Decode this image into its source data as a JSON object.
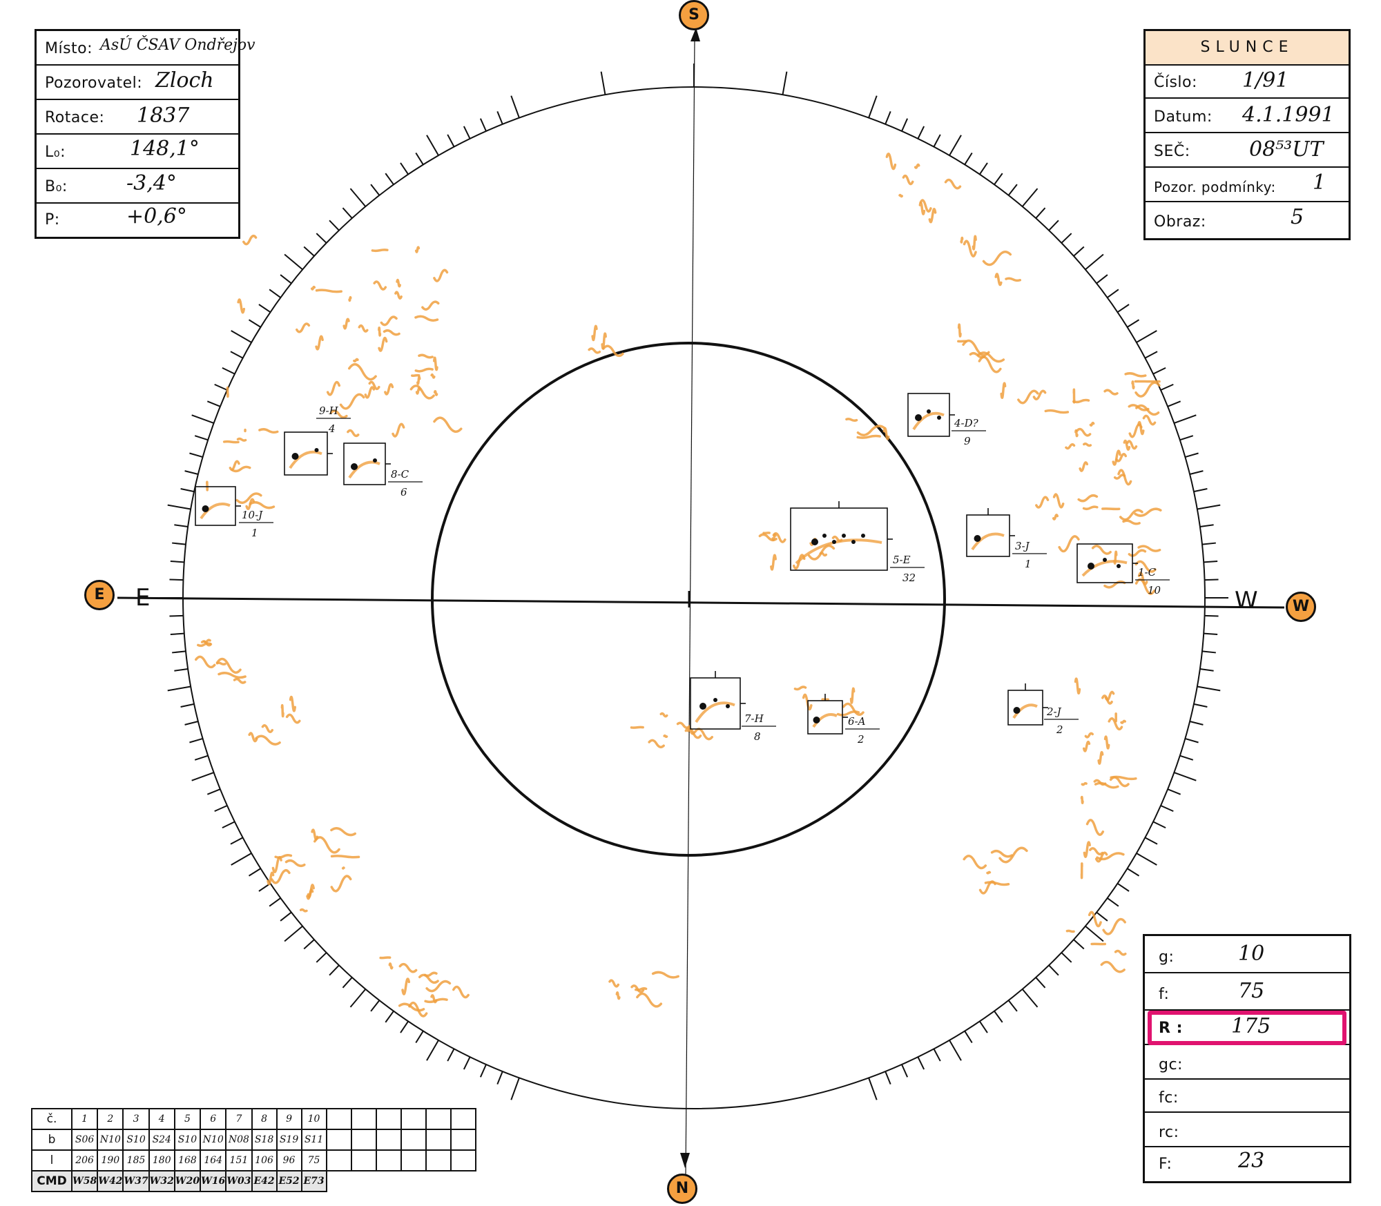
{
  "header_left": {
    "rows": [
      {
        "label": "Místo:",
        "value": "AsÚ ČSAV Ondřejov"
      },
      {
        "label": "Pozorovatel:",
        "value": "Zloch"
      },
      {
        "label": "Rotace:",
        "value": "1837"
      },
      {
        "label": "L₀:",
        "value": "148,1°"
      },
      {
        "label": "B₀:",
        "value": "-3,4°"
      },
      {
        "label": "P:",
        "value": "+0,6°"
      }
    ]
  },
  "header_right": {
    "title": "SLUNCE",
    "rows": [
      {
        "label": "Číslo:",
        "value": "1/91"
      },
      {
        "label": "Datum:",
        "value": "4.1.1991"
      },
      {
        "label": "SEČ:",
        "value": "08⁵³UT"
      },
      {
        "label": "Pozor. podmínky:",
        "value": "1"
      },
      {
        "label": "Obraz:",
        "value": "5"
      }
    ]
  },
  "stats_box": {
    "rows": [
      {
        "label": "g:",
        "value": "10"
      },
      {
        "label": "f:",
        "value": "75"
      },
      {
        "label": "R :",
        "value": "175"
      },
      {
        "label": "gc:",
        "value": ""
      },
      {
        "label": "fc:",
        "value": ""
      },
      {
        "label": "rc:",
        "value": ""
      },
      {
        "label": "F:",
        "value": "23"
      }
    ],
    "highlight_color": "#e0136f"
  },
  "compass": {
    "south": "S",
    "north": "N",
    "east_badge": "E",
    "west_badge": "W",
    "east_letter": "E",
    "west_letter": "W",
    "badge_color": "#f5a040"
  },
  "groups_table": {
    "row_headers": [
      "č.",
      "b",
      "l",
      "CMD"
    ],
    "numbers": [
      "1",
      "2",
      "3",
      "4",
      "5",
      "6",
      "7",
      "8",
      "9",
      "10",
      "",
      "",
      "",
      "",
      "",
      ""
    ],
    "b": [
      "S06",
      "N10",
      "S10",
      "S24",
      "S10",
      "N10",
      "N08",
      "S18",
      "S19",
      "S11",
      "",
      "",
      "",
      "",
      "",
      ""
    ],
    "l": [
      "206",
      "190",
      "185",
      "180",
      "168",
      "164",
      "151",
      "106",
      "96",
      "75",
      "",
      "",
      "",
      "",
      "",
      ""
    ],
    "cmd": [
      "W58",
      "W42",
      "W37",
      "W32",
      "W20",
      "W16",
      "W03",
      "E42",
      "E52",
      "E73"
    ]
  },
  "sunspot_groups": [
    {
      "label": "1-C",
      "count": "10"
    },
    {
      "label": "2-J",
      "count": "2"
    },
    {
      "label": "3-J",
      "count": "1"
    },
    {
      "label": "4-D?",
      "count": "9"
    },
    {
      "label": "5-E",
      "count": "32"
    },
    {
      "label": "6-A",
      "count": "2"
    },
    {
      "label": "7-H",
      "count": "8"
    },
    {
      "label": "8-C",
      "count": "6"
    },
    {
      "label": "9-H",
      "count": "4"
    },
    {
      "label": "10-J",
      "count": "1"
    }
  ],
  "facula_color": "#f0a040"
}
